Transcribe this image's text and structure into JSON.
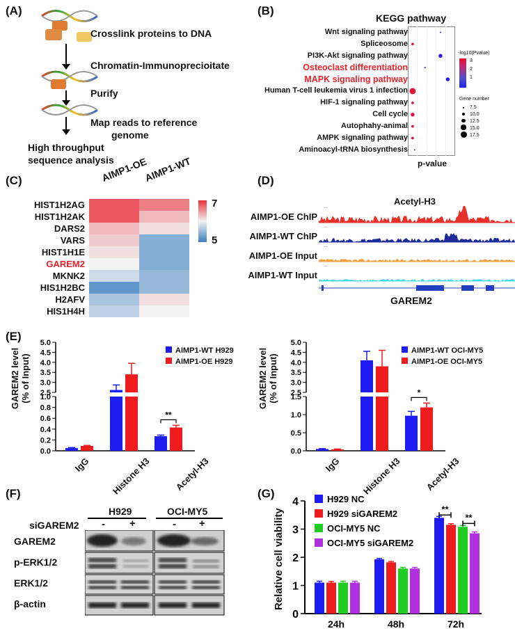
{
  "panel_labels": {
    "a": "(A)",
    "b": "(B)",
    "c": "(C)",
    "d": "(D)",
    "e": "(E)",
    "f": "(F)",
    "g": "(G)"
  },
  "panel_a": {
    "steps": [
      "Crosslink proteins to DNA",
      "Chromatin-Immunoprecioitate",
      "Purify",
      "Map reads to reference",
      "genome",
      "High throughput",
      "sequence analysis"
    ]
  },
  "panel_b": {
    "title": "KEGG pathway",
    "xlabel": "p-value",
    "color_legend_title": "-log10(Pvalue)",
    "color_ticks": [
      "3",
      "2",
      "1"
    ],
    "size_legend_title": "Gene number",
    "size_ticks": [
      "7.5",
      "10.0",
      "12.5",
      "15.0",
      "17.5"
    ],
    "highlight_color": "#e8212a",
    "pathways": [
      {
        "name": "Wnt signaling pathway",
        "highlight": false
      },
      {
        "name": "Spliceosome",
        "highlight": false
      },
      {
        "name": "PI3K-Akt signaling pathway",
        "highlight": false
      },
      {
        "name": "Osteoclast differentiation",
        "highlight": true
      },
      {
        "name": "MAPK signaling pathway",
        "highlight": true
      },
      {
        "name": "Human T-cell leukemia virus 1 infection",
        "highlight": false
      },
      {
        "name": "HIF-1 signaling pathway",
        "highlight": false
      },
      {
        "name": "Cell cycle",
        "highlight": false
      },
      {
        "name": "Autophahy-animal",
        "highlight": false
      },
      {
        "name": "AMPK signaling pathway",
        "highlight": false
      },
      {
        "name": "Aminoacyl-tRNA biosynthesis",
        "highlight": false
      }
    ]
  },
  "panel_c": {
    "col_labels": [
      "AIMP1-OE",
      "AIMP1-WT"
    ],
    "scale_max": "7",
    "scale_min": "5",
    "genes": [
      "HIST1H2AG",
      "HIST1H2AK",
      "DARS2",
      "VARS",
      "HIST1H1E",
      "GAREM2",
      "MKNK2",
      "HIS1H2BC",
      "H2AFV",
      "HIS1H4H"
    ],
    "highlight_gene": "GAREM2"
  },
  "panel_d": {
    "title": "Acetyl-H3",
    "tracks": [
      "AIMP1-OE ChIP",
      "AIMP1-WT ChIP",
      "AIMP1-OE Input",
      "AIMP1-WT Input"
    ],
    "gene": "GAREM2",
    "track_colors": [
      "#e8312a",
      "#1c2a9a",
      "#f0a040",
      "#40d8e0"
    ]
  },
  "panel_e": {
    "ylabel1": "GAREM2 level",
    "ylabel2": "(% of Input)",
    "significance": "**",
    "significance2": "*",
    "left_legend": [
      "AIMP1-WT H929",
      "AIMP1-OE H929"
    ],
    "right_legend": [
      "AIMP1-WT OCI-MY5",
      "AIMP1-OE OCI-MY5"
    ],
    "categories": [
      "IgG",
      "Histone H3",
      "Acetyl-H3"
    ]
  },
  "panel_f": {
    "cell_lines": [
      "H929",
      "OCI-MY5"
    ],
    "row_label": "siGAREM2",
    "minus": "-",
    "plus": "+",
    "proteins": [
      "GAREM2",
      "p-ERK1/2",
      "ERK1/2",
      "β-actin"
    ]
  },
  "panel_g": {
    "ylabel": "Relative cell viability",
    "sig1": "**",
    "sig2": "**"
  },
  "chart_data": [
    {
      "type": "heatmap",
      "panel": "C",
      "rows": [
        "HIST1H2AG",
        "HIST1H2AK",
        "DARS2",
        "VARS",
        "HIST1H1E",
        "GAREM2",
        "MKNK2",
        "HIS1H2BC",
        "H2AFV",
        "HIS1H4H"
      ],
      "columns": [
        "AIMP1-OE",
        "AIMP1-WT"
      ],
      "values": [
        [
          6.8,
          6.6
        ],
        [
          6.8,
          6.3
        ],
        [
          6.3,
          6.1
        ],
        [
          6.2,
          5.4
        ],
        [
          6.1,
          5.4
        ],
        [
          6.0,
          5.4
        ],
        [
          5.8,
          5.5
        ],
        [
          5.2,
          5.5
        ],
        [
          5.6,
          6.1
        ],
        [
          5.7,
          6.0
        ]
      ],
      "vmin": 5,
      "vmax": 7
    },
    {
      "type": "scatter",
      "panel": "B",
      "y_categories": [
        "Wnt signaling pathway",
        "Spliceosome",
        "PI3K-Akt signaling pathway",
        "Osteoclast differentiation",
        "MAPK signaling pathway",
        "Human T-cell leukemia virus 1 infection",
        "HIF-1 signaling pathway",
        "Cell cycle",
        "Autophahy-animal",
        "AMPK signaling pathway",
        "Aminoacyl-tRNA biosynthesis"
      ],
      "x": [
        0.74,
        0.05,
        0.74,
        0.36,
        0.92,
        0.05,
        0.05,
        0.05,
        0.05,
        0.05,
        0.1
      ],
      "log_p": [
        1.0,
        3.0,
        1.2,
        1.0,
        1.1,
        2.9,
        2.8,
        2.8,
        2.9,
        2.8,
        1.5
      ],
      "gene_number": [
        7.5,
        10.0,
        12.5,
        7.5,
        12.5,
        17.5,
        10.0,
        12.5,
        10.0,
        10.0,
        7.5
      ]
    },
    {
      "type": "bar",
      "panel": "E-left",
      "categories": [
        "IgG",
        "Histone H3",
        "Acetyl-H3"
      ],
      "ylim": [
        0,
        5.0
      ],
      "yticks": [
        "0.0",
        "0.2",
        "0.4",
        "0.6",
        "0.8",
        "1.0",
        "2.5",
        "3.0",
        "3.5",
        "4.0",
        "4.5",
        "5.0"
      ],
      "broken_axis": [
        1.0,
        2.5
      ],
      "series": [
        {
          "name": "AIMP1-WT H929",
          "color": "#1c1cf0",
          "values": [
            0.05,
            2.62,
            0.27
          ],
          "errors": [
            0.01,
            0.25,
            0.02
          ]
        },
        {
          "name": "AIMP1-OE H929",
          "color": "#ee1c1c",
          "values": [
            0.09,
            3.4,
            0.43
          ],
          "errors": [
            0.01,
            0.55,
            0.04
          ]
        }
      ]
    },
    {
      "type": "bar",
      "panel": "E-right",
      "categories": [
        "IgG",
        "Histone H3",
        "Acetyl-H3"
      ],
      "ylim": [
        0,
        5.0
      ],
      "yticks": [
        "0.0",
        "0.5",
        "1.0",
        "1.5",
        "2.5",
        "3.0",
        "3.5",
        "4.0",
        "4.5",
        "5.0"
      ],
      "broken_axis": [
        1.5,
        2.5
      ],
      "series": [
        {
          "name": "AIMP1-WT OCI-MY5",
          "color": "#1c1cf0",
          "values": [
            0.05,
            4.1,
            0.97
          ],
          "errors": [
            0.01,
            0.45,
            0.12
          ]
        },
        {
          "name": "AIMP1-OE OCI-MY5",
          "color": "#ee1c1c",
          "values": [
            0.04,
            3.8,
            1.2
          ],
          "errors": [
            0.01,
            0.8,
            0.12
          ]
        }
      ]
    },
    {
      "type": "bar",
      "panel": "G",
      "categories": [
        "24h",
        "48h",
        "72h"
      ],
      "ylim": [
        0,
        4
      ],
      "yticks": [
        "0",
        "1",
        "2",
        "3",
        "4"
      ],
      "series": [
        {
          "name": "H929 NC",
          "color": "#1c1cf0",
          "values": [
            1.1,
            1.93,
            3.4
          ],
          "errors": [
            0.05,
            0.03,
            0.05
          ]
        },
        {
          "name": "H929 siGAREM2",
          "color": "#ee1c1c",
          "values": [
            1.1,
            1.82,
            3.15
          ],
          "errors": [
            0.04,
            0.03,
            0.04
          ]
        },
        {
          "name": "OCI-MY5 NC",
          "color": "#22cc22",
          "values": [
            1.1,
            1.6,
            3.08
          ],
          "errors": [
            0.05,
            0.04,
            0.05
          ]
        },
        {
          "name": "OCI-MY5 siGAREM2",
          "color": "#b030e0",
          "values": [
            1.1,
            1.6,
            2.85
          ],
          "errors": [
            0.05,
            0.04,
            0.05
          ]
        }
      ]
    }
  ]
}
